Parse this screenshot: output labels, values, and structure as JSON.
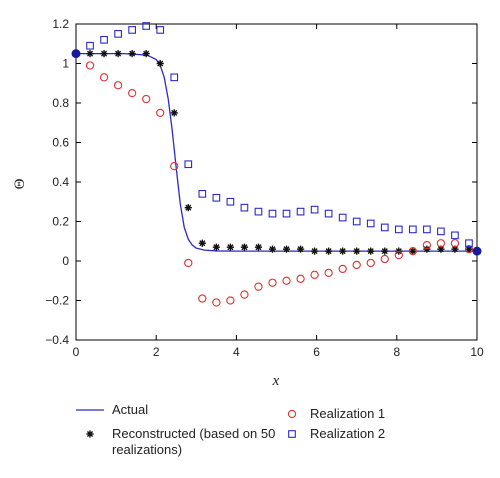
{
  "chart_data": {
    "type": "scatter",
    "xlabel": "x",
    "ylabel": "Θ",
    "xlim": [
      0,
      10
    ],
    "ylim": [
      -0.4,
      1.2
    ],
    "x_ticks": [
      0,
      2,
      4,
      6,
      8,
      10
    ],
    "y_ticks": [
      -0.4,
      -0.2,
      0,
      0.2,
      0.4,
      0.6,
      0.8,
      1,
      1.2
    ],
    "x_tick_labels": [
      "0",
      "2",
      "4",
      "6",
      "8",
      "10"
    ],
    "y_tick_labels": [
      "−0.4",
      "−0.2",
      "0",
      "0.2",
      "0.4",
      "0.6",
      "0.8",
      "1",
      "1.2"
    ],
    "grid": false,
    "legend_position": "bottom",
    "endpoints": {
      "color": "#1a1a9c",
      "x": [
        0,
        10
      ],
      "y": [
        1.05,
        0.05
      ]
    },
    "series": [
      {
        "name": "Actual",
        "kind": "line",
        "color": "#2b2bc8",
        "x": [
          0,
          0.4,
          0.8,
          1.2,
          1.6,
          1.8,
          2.0,
          2.1,
          2.2,
          2.3,
          2.4,
          2.5,
          2.6,
          2.7,
          2.8,
          2.9,
          3.0,
          3.2,
          3.5,
          4.0,
          5.0,
          6.0,
          7.0,
          8.0,
          9.0,
          10.0
        ],
        "y": [
          1.05,
          1.05,
          1.05,
          1.05,
          1.045,
          1.04,
          1.02,
          0.99,
          0.93,
          0.82,
          0.66,
          0.47,
          0.29,
          0.17,
          0.11,
          0.08,
          0.065,
          0.055,
          0.051,
          0.05,
          0.05,
          0.05,
          0.05,
          0.05,
          0.05,
          0.05
        ]
      },
      {
        "name": "Reconstructed (based on 50 realizations)",
        "kind": "star",
        "color": "#111111",
        "x": [
          0.35,
          0.7,
          1.05,
          1.4,
          1.75,
          2.1,
          2.45,
          2.8,
          3.15,
          3.5,
          3.85,
          4.2,
          4.55,
          4.9,
          5.25,
          5.6,
          5.95,
          6.3,
          6.65,
          7.0,
          7.35,
          7.7,
          8.05,
          8.4,
          8.75,
          9.1,
          9.45,
          9.8
        ],
        "y": [
          1.05,
          1.05,
          1.05,
          1.05,
          1.05,
          1.0,
          0.75,
          0.27,
          0.09,
          0.07,
          0.07,
          0.07,
          0.07,
          0.06,
          0.06,
          0.06,
          0.05,
          0.05,
          0.05,
          0.05,
          0.05,
          0.05,
          0.05,
          0.05,
          0.06,
          0.06,
          0.06,
          0.06
        ]
      },
      {
        "name": "Realization 1",
        "kind": "circle",
        "color": "#e03030",
        "x": [
          0.35,
          0.7,
          1.05,
          1.4,
          1.75,
          2.1,
          2.45,
          2.8,
          3.15,
          3.5,
          3.85,
          4.2,
          4.55,
          4.9,
          5.25,
          5.6,
          5.95,
          6.3,
          6.65,
          7.0,
          7.35,
          7.7,
          8.05,
          8.4,
          8.75,
          9.1,
          9.45,
          9.8
        ],
        "y": [
          0.99,
          0.93,
          0.89,
          0.85,
          0.82,
          0.75,
          0.48,
          -0.01,
          -0.19,
          -0.21,
          -0.2,
          -0.17,
          -0.13,
          -0.11,
          -0.1,
          -0.09,
          -0.07,
          -0.06,
          -0.04,
          -0.02,
          -0.01,
          0.01,
          0.03,
          0.05,
          0.08,
          0.09,
          0.09,
          0.06
        ]
      },
      {
        "name": "Realization 2",
        "kind": "square",
        "color": "#2b2bc8",
        "x": [
          0.35,
          0.7,
          1.05,
          1.4,
          1.75,
          2.1,
          2.45,
          2.8,
          3.15,
          3.5,
          3.85,
          4.2,
          4.55,
          4.9,
          5.25,
          5.6,
          5.95,
          6.3,
          6.65,
          7.0,
          7.35,
          7.7,
          8.05,
          8.4,
          8.75,
          9.1,
          9.45,
          9.8
        ],
        "y": [
          1.09,
          1.12,
          1.15,
          1.17,
          1.19,
          1.17,
          0.93,
          0.49,
          0.34,
          0.32,
          0.3,
          0.27,
          0.25,
          0.24,
          0.24,
          0.25,
          0.26,
          0.24,
          0.22,
          0.2,
          0.19,
          0.17,
          0.16,
          0.16,
          0.16,
          0.15,
          0.13,
          0.09
        ]
      }
    ]
  }
}
